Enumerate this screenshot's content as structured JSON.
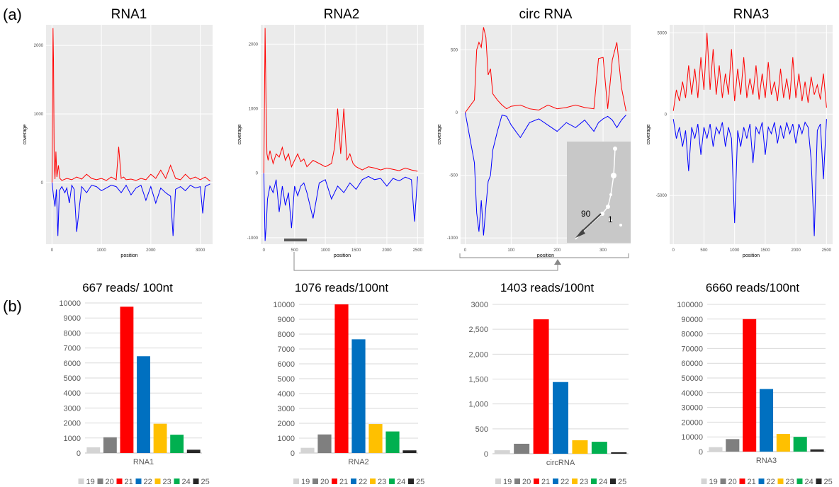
{
  "figure": {
    "label_a": "(a)",
    "label_b": "(b)"
  },
  "colors": {
    "plus": "#ff0000",
    "minus": "#0000ff",
    "panel_bg": "#ebebeb",
    "grid": "#ffffff"
  },
  "chart_data": [
    {
      "type": "line",
      "title": "RNA1",
      "xlabel": "position",
      "ylabel": "coverage",
      "xlim": [
        -120,
        3250
      ],
      "ylim": [
        -900,
        2300
      ],
      "xticks": [
        "0",
        "1000",
        "2000",
        "3000"
      ],
      "yticks": [
        "0",
        "1000",
        "2000"
      ],
      "series": [
        {
          "name": "",
          "color": "#ff0000",
          "x": [
            0,
            20,
            30,
            45,
            60,
            80,
            100,
            130,
            160,
            200,
            300,
            400,
            500,
            600,
            700,
            800,
            900,
            1000,
            1100,
            1200,
            1300,
            1350,
            1400,
            1450,
            1500,
            1600,
            1700,
            1800,
            1900,
            2000,
            2100,
            2200,
            2300,
            2400,
            2500,
            2600,
            2700,
            2800,
            2900,
            3000,
            3100,
            3200
          ],
          "y": [
            0,
            2250,
            1800,
            300,
            50,
            450,
            80,
            250,
            60,
            30,
            60,
            40,
            80,
            50,
            120,
            60,
            40,
            60,
            30,
            80,
            40,
            520,
            60,
            80,
            40,
            50,
            30,
            60,
            40,
            120,
            60,
            180,
            60,
            250,
            60,
            40,
            120,
            50,
            80,
            40,
            80,
            20
          ]
        },
        {
          "name": "",
          "color": "#0000ff",
          "x": [
            0,
            30,
            60,
            90,
            120,
            150,
            200,
            260,
            300,
            350,
            400,
            450,
            500,
            600,
            700,
            800,
            900,
            1000,
            1100,
            1200,
            1300,
            1400,
            1500,
            1600,
            1700,
            1800,
            1900,
            2000,
            2100,
            2200,
            2300,
            2400,
            2450,
            2500,
            2600,
            2700,
            2800,
            2900,
            3000,
            3050,
            3100,
            3200
          ],
          "y": [
            0,
            -200,
            -350,
            -100,
            -780,
            -120,
            -60,
            -150,
            -80,
            -300,
            -40,
            -100,
            -720,
            -60,
            -150,
            -40,
            -60,
            -120,
            -80,
            -40,
            -60,
            -150,
            -40,
            -180,
            -80,
            -40,
            -260,
            -60,
            -300,
            -80,
            -150,
            -200,
            -780,
            -100,
            -60,
            -120,
            -40,
            -80,
            -60,
            -450,
            -60,
            -20
          ]
        }
      ]
    },
    {
      "type": "line",
      "title": "RNA2",
      "xlabel": "position",
      "ylabel": "coverage",
      "xlim": [
        -50,
        2600
      ],
      "ylim": [
        -1100,
        2300
      ],
      "xticks": [
        "0",
        "500",
        "1000",
        "1500",
        "2000",
        "2500"
      ],
      "yticks": [
        "-1000",
        "0",
        "1000",
        "2000"
      ],
      "annotation": "bar",
      "series": [
        {
          "name": "",
          "color": "#ff0000",
          "x": [
            0,
            20,
            35,
            50,
            70,
            100,
            150,
            200,
            250,
            300,
            350,
            400,
            450,
            500,
            550,
            600,
            650,
            700,
            800,
            900,
            1000,
            1100,
            1150,
            1200,
            1250,
            1300,
            1350,
            1400,
            1450,
            1500,
            1600,
            1700,
            1800,
            1900,
            2000,
            2100,
            2200,
            2300,
            2400,
            2500
          ],
          "y": [
            0,
            2250,
            1100,
            300,
            200,
            350,
            150,
            300,
            250,
            400,
            200,
            300,
            100,
            200,
            300,
            180,
            220,
            100,
            200,
            150,
            100,
            150,
            400,
            1000,
            300,
            1000,
            200,
            300,
            150,
            100,
            50,
            100,
            80,
            50,
            80,
            60,
            40,
            80,
            50,
            30
          ]
        },
        {
          "name": "",
          "color": "#0000ff",
          "x": [
            0,
            20,
            40,
            60,
            100,
            150,
            200,
            250,
            300,
            350,
            400,
            450,
            500,
            550,
            600,
            650,
            700,
            800,
            900,
            1000,
            1100,
            1200,
            1300,
            1400,
            1500,
            1600,
            1700,
            1800,
            1900,
            2000,
            2100,
            2200,
            2300,
            2400,
            2450,
            2500
          ],
          "y": [
            0,
            -1050,
            -800,
            -400,
            -200,
            -300,
            -100,
            -600,
            -200,
            -500,
            -300,
            -850,
            -200,
            -350,
            -200,
            -150,
            -300,
            -700,
            -150,
            -100,
            -400,
            -200,
            -300,
            -150,
            -250,
            -100,
            -50,
            -100,
            -80,
            -200,
            -80,
            -120,
            -60,
            -100,
            -750,
            -50
          ]
        }
      ]
    },
    {
      "type": "line",
      "title": "circ RNA",
      "xlabel": "position",
      "ylabel": "coverage",
      "xlim": [
        -10,
        360
      ],
      "ylim": [
        -1050,
        700
      ],
      "xticks": [
        "0",
        "100",
        "200",
        "300"
      ],
      "yticks": [
        "-1000",
        "-500",
        "0",
        "500"
      ],
      "inset_labels": [
        "90",
        "1"
      ],
      "series": [
        {
          "name": "",
          "color": "#ff0000",
          "x": [
            0,
            10,
            20,
            25,
            30,
            35,
            40,
            45,
            50,
            55,
            60,
            70,
            80,
            90,
            100,
            120,
            140,
            160,
            180,
            200,
            220,
            240,
            260,
            280,
            290,
            300,
            310,
            320,
            330,
            340,
            350
          ],
          "y": [
            0,
            50,
            100,
            500,
            560,
            520,
            680,
            600,
            300,
            350,
            150,
            100,
            60,
            30,
            50,
            60,
            30,
            20,
            60,
            30,
            40,
            60,
            40,
            30,
            430,
            440,
            30,
            420,
            560,
            200,
            10
          ]
        },
        {
          "name": "",
          "color": "#0000ff",
          "x": [
            0,
            10,
            20,
            25,
            30,
            35,
            40,
            45,
            50,
            55,
            60,
            70,
            80,
            90,
            100,
            120,
            140,
            160,
            180,
            200,
            220,
            240,
            260,
            280,
            290,
            300,
            310,
            320,
            330,
            340,
            350
          ],
          "y": [
            0,
            -200,
            -400,
            -800,
            -950,
            -700,
            -980,
            -750,
            -550,
            -500,
            -300,
            -150,
            -20,
            -30,
            -100,
            -200,
            -80,
            -50,
            -100,
            -150,
            -80,
            -120,
            -60,
            -150,
            -80,
            -50,
            -30,
            -60,
            -120,
            -60,
            -20
          ]
        }
      ]
    },
    {
      "type": "line",
      "title": "RNA3",
      "xlabel": "position",
      "ylabel": "coverage",
      "xlim": [
        -60,
        2600
      ],
      "ylim": [
        -8000,
        5500
      ],
      "xticks": [
        "0",
        "500",
        "1000",
        "1500",
        "2000",
        "2500"
      ],
      "yticks": [
        "-5000",
        "0",
        "5000"
      ],
      "series": [
        {
          "name": "",
          "color": "#ff0000",
          "x": [
            0,
            50,
            100,
            150,
            200,
            250,
            300,
            350,
            400,
            450,
            500,
            550,
            600,
            650,
            700,
            750,
            800,
            850,
            900,
            950,
            1000,
            1050,
            1100,
            1150,
            1200,
            1250,
            1300,
            1350,
            1400,
            1450,
            1500,
            1550,
            1600,
            1650,
            1700,
            1750,
            1800,
            1850,
            1900,
            1950,
            2000,
            2050,
            2100,
            2150,
            2200,
            2250,
            2300,
            2350,
            2400,
            2450,
            2500
          ],
          "y": [
            200,
            1500,
            800,
            2000,
            1000,
            3000,
            1200,
            2800,
            1000,
            3500,
            1500,
            5000,
            1500,
            4000,
            1200,
            3000,
            1000,
            2500,
            1200,
            4000,
            800,
            2800,
            1200,
            3500,
            1000,
            2200,
            1200,
            3000,
            900,
            2500,
            1000,
            3200,
            1200,
            2000,
            800,
            2800,
            1000,
            2200,
            900,
            3500,
            1000,
            2500,
            800,
            2000,
            700,
            2300,
            1200,
            1800,
            900,
            2500,
            400
          ]
        },
        {
          "name": "",
          "color": "#0000ff",
          "x": [
            0,
            50,
            100,
            150,
            200,
            250,
            300,
            350,
            400,
            450,
            500,
            550,
            600,
            650,
            700,
            750,
            800,
            850,
            900,
            950,
            1000,
            1050,
            1100,
            1150,
            1200,
            1250,
            1300,
            1350,
            1400,
            1450,
            1500,
            1550,
            1600,
            1650,
            1700,
            1750,
            1800,
            1850,
            1900,
            1950,
            2000,
            2050,
            2100,
            2150,
            2200,
            2250,
            2300,
            2350,
            2400,
            2450,
            2500
          ],
          "y": [
            -300,
            -1500,
            -800,
            -2000,
            -1000,
            -3500,
            -800,
            -1500,
            -600,
            -2500,
            -800,
            -1500,
            -600,
            -2000,
            -800,
            -1200,
            -500,
            -2000,
            -800,
            -1500,
            -6700,
            -1000,
            -2000,
            -800,
            -1500,
            -600,
            -3000,
            -800,
            -1200,
            -500,
            -2500,
            -800,
            -1200,
            -500,
            -1800,
            -700,
            -1500,
            -500,
            -1200,
            -600,
            -1800,
            -600,
            -1200,
            -500,
            -800,
            -2800,
            -7500,
            -1000,
            -600,
            -4000,
            -300
          ]
        }
      ]
    },
    {
      "type": "bar",
      "title": "667 reads/ 100nt",
      "xlabel": "RNA1",
      "categories": [
        "19",
        "20",
        "21",
        "22",
        "23",
        "24",
        "25"
      ],
      "values": [
        380,
        1050,
        9750,
        6450,
        1950,
        1220,
        220
      ],
      "ylim": [
        0,
        10000
      ],
      "yticks": [
        "0",
        "1000",
        "2000",
        "3000",
        "4000",
        "5000",
        "6000",
        "7000",
        "8000",
        "9000",
        "10000"
      ]
    },
    {
      "type": "bar",
      "title": "1076 reads/100nt",
      "xlabel": "RNA2",
      "categories": [
        "19",
        "20",
        "21",
        "22",
        "23",
        "24",
        "25"
      ],
      "values": [
        350,
        1250,
        10000,
        7650,
        1950,
        1450,
        180
      ],
      "ylim": [
        0,
        10000
      ],
      "yticks": [
        "0",
        "1000",
        "2000",
        "3000",
        "4000",
        "5000",
        "6000",
        "7000",
        "8000",
        "9000",
        "10000"
      ]
    },
    {
      "type": "bar",
      "title": "1403 reads/100nt",
      "xlabel": "circRNA",
      "categories": [
        "19",
        "20",
        "21",
        "22",
        "23",
        "24",
        "25"
      ],
      "values": [
        70,
        200,
        2700,
        1440,
        270,
        240,
        30
      ],
      "ylim": [
        0,
        3000
      ],
      "yticks": [
        "0",
        "500",
        "1,000",
        "1,500",
        "2,000",
        "2,500",
        "3000"
      ]
    },
    {
      "type": "bar",
      "title": "6660 reads/100nt",
      "xlabel": "RNA3",
      "categories": [
        "19",
        "20",
        "21",
        "22",
        "23",
        "24",
        "25"
      ],
      "values": [
        3000,
        8500,
        90000,
        42500,
        12000,
        10000,
        1500
      ],
      "ylim": [
        0,
        100000
      ],
      "yticks": [
        "0",
        "10000",
        "20000",
        "30000",
        "40000",
        "50000",
        "60000",
        "70000",
        "80000",
        "90000",
        "100000"
      ]
    }
  ],
  "bar_colors": [
    "#d4d4d4",
    "#7f7f7f",
    "#ff0000",
    "#0070c0",
    "#ffc000",
    "#00b050",
    "#262626"
  ]
}
